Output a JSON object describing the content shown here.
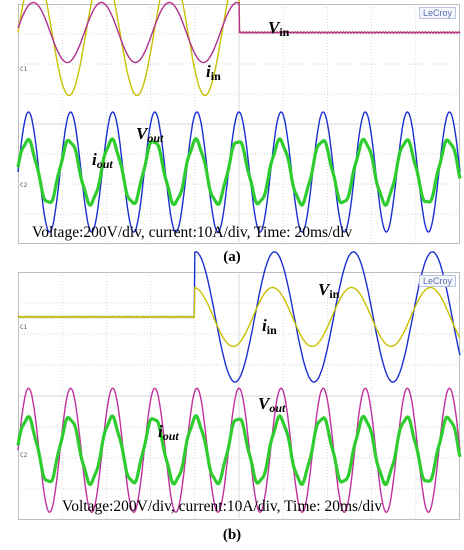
{
  "panels": [
    {
      "caption": "(a)",
      "brand": "LeCroy",
      "settings_text": "Voltage:200V/div, current:10A/div, Time: 20ms/div",
      "labels": {
        "vin": "V",
        "vin_sub": "in",
        "iin": "i",
        "iin_sub": "in",
        "vout": "V",
        "vout_sub": "out",
        "iout": "i",
        "iout_sub": "out"
      },
      "chart_data": {
        "type": "line",
        "xlabel": "",
        "ylabel": "",
        "grid": true,
        "series": [
          {
            "name": "Vin",
            "color": "#c8c000",
            "cycles": 6.5,
            "amplitude_div": 2.1,
            "offset_div": 3.05,
            "active": "before-step",
            "step_at": 0.5
          },
          {
            "name": "iin",
            "color": "#b0308f",
            "cycles": 6.5,
            "amplitude_div": 1.0,
            "offset_div": 3.05,
            "active": "before-step",
            "step_at": 0.5
          },
          {
            "name": "Vout",
            "color": "#1a2fcf",
            "cycles": 10.5,
            "amplitude_div": 2.0,
            "offset_div": -1.6,
            "active": "always"
          },
          {
            "name": "iout",
            "color": "#2ecc2e",
            "cycles": 10.5,
            "amplitude_div": 1.05,
            "offset_div": -1.6,
            "active": "always"
          }
        ]
      }
    },
    {
      "caption": "(b)",
      "brand": "LeCroy",
      "settings_text": "Voltage:200V/div, current:10A/div, Time: 20ms/div",
      "labels": {
        "vin": "V",
        "vin_sub": "in",
        "iin": "i",
        "iin_sub": "in",
        "vout": "V",
        "vout_sub": "out",
        "iout": "i",
        "iout_sub": "out"
      },
      "chart_data": {
        "type": "line",
        "xlabel": "",
        "ylabel": "",
        "grid": true,
        "series": [
          {
            "name": "Vin",
            "color": "#1a2fcf",
            "cycles": 5.6,
            "amplitude_div": 2.1,
            "offset_div": 2.55,
            "active": "after-step",
            "step_at": 0.4
          },
          {
            "name": "iin",
            "color": "#c8c000",
            "cycles": 5.6,
            "amplitude_div": 0.95,
            "offset_div": 2.55,
            "active": "after-step",
            "step_at": 0.4
          },
          {
            "name": "Vout",
            "color": "#c0309f",
            "cycles": 10.5,
            "amplitude_div": 2.0,
            "offset_div": -1.75,
            "active": "always"
          },
          {
            "name": "iout",
            "color": "#2ecc2e",
            "cycles": 10.5,
            "amplitude_div": 1.05,
            "offset_div": -1.75,
            "active": "always"
          }
        ]
      }
    }
  ]
}
